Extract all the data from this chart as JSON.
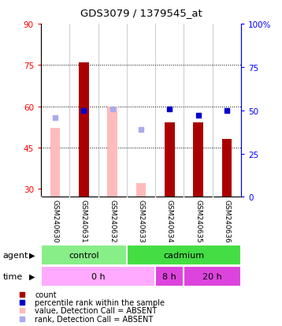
{
  "title": "GDS3079 / 1379545_at",
  "samples": [
    "GSM240630",
    "GSM240631",
    "GSM240632",
    "GSM240633",
    "GSM240634",
    "GSM240635",
    "GSM240636"
  ],
  "count_values": [
    null,
    76,
    null,
    null,
    54,
    54,
    48
  ],
  "count_absent": [
    52,
    null,
    60,
    32,
    null,
    null,
    null
  ],
  "rank_present": [
    null,
    50,
    null,
    null,
    51,
    47,
    50
  ],
  "rank_absent": [
    46,
    null,
    51,
    39,
    null,
    null,
    null
  ],
  "ylim_left": [
    27,
    90
  ],
  "ylim_right": [
    0,
    100
  ],
  "yticks_left": [
    30,
    45,
    60,
    75,
    90
  ],
  "yticks_right": [
    0,
    25,
    50,
    75,
    100
  ],
  "ytick_labels_left": [
    "30",
    "45",
    "60",
    "75",
    "90"
  ],
  "ytick_labels_right": [
    "0",
    "25",
    "50",
    "75",
    "100%"
  ],
  "hlines": [
    45,
    60,
    75
  ],
  "bar_width": 0.35,
  "count_color": "#aa0000",
  "count_absent_color": "#ffbbbb",
  "rank_present_color": "#0000cc",
  "rank_absent_color": "#aaaaee",
  "label_area_bg": "#d0d0d0",
  "label_sep_color": "#ffffff",
  "agent_groups": [
    {
      "label": "control",
      "start": 0,
      "end": 3,
      "color": "#88ee88"
    },
    {
      "label": "cadmium",
      "start": 3,
      "end": 7,
      "color": "#44dd44"
    }
  ],
  "time_groups": [
    {
      "label": "0 h",
      "start": 0,
      "end": 4,
      "color": "#ffaaff"
    },
    {
      "label": "8 h",
      "start": 4,
      "end": 5,
      "color": "#dd44dd"
    },
    {
      "label": "20 h",
      "start": 5,
      "end": 7,
      "color": "#dd44dd"
    }
  ],
  "legend_items": [
    {
      "color": "#aa0000",
      "label": "count"
    },
    {
      "color": "#0000cc",
      "label": "percentile rank within the sample"
    },
    {
      "color": "#ffbbbb",
      "label": "value, Detection Call = ABSENT"
    },
    {
      "color": "#aaaaee",
      "label": "rank, Detection Call = ABSENT"
    }
  ]
}
